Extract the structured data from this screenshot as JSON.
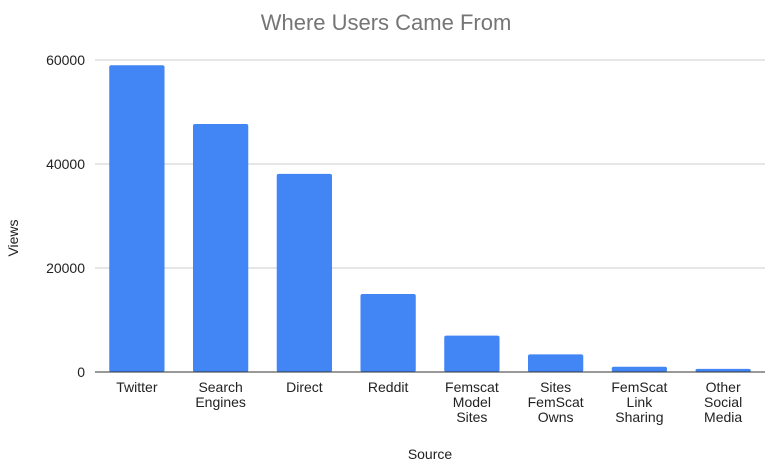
{
  "chart_data": {
    "type": "bar",
    "title": "Where Users Came From",
    "xlabel": "Source",
    "ylabel": "Views",
    "ylim": [
      0,
      60000
    ],
    "yticks": [
      0,
      20000,
      40000,
      60000
    ],
    "grid": true,
    "legend": "none",
    "bar_color": "#4285f4",
    "grid_color": "#cccccc",
    "axis_color": "#333333",
    "categories": [
      [
        "Twitter"
      ],
      [
        "Search",
        "Engines"
      ],
      [
        "Direct"
      ],
      [
        "Reddit"
      ],
      [
        "Femscat",
        "Model",
        "Sites"
      ],
      [
        "Sites",
        "FemScat",
        "Owns"
      ],
      [
        "FemScat",
        "Link",
        "Sharing"
      ],
      [
        "Other",
        "Social",
        "Media"
      ]
    ],
    "values": [
      59000,
      47700,
      38100,
      15000,
      7000,
      3400,
      1000,
      600
    ]
  }
}
